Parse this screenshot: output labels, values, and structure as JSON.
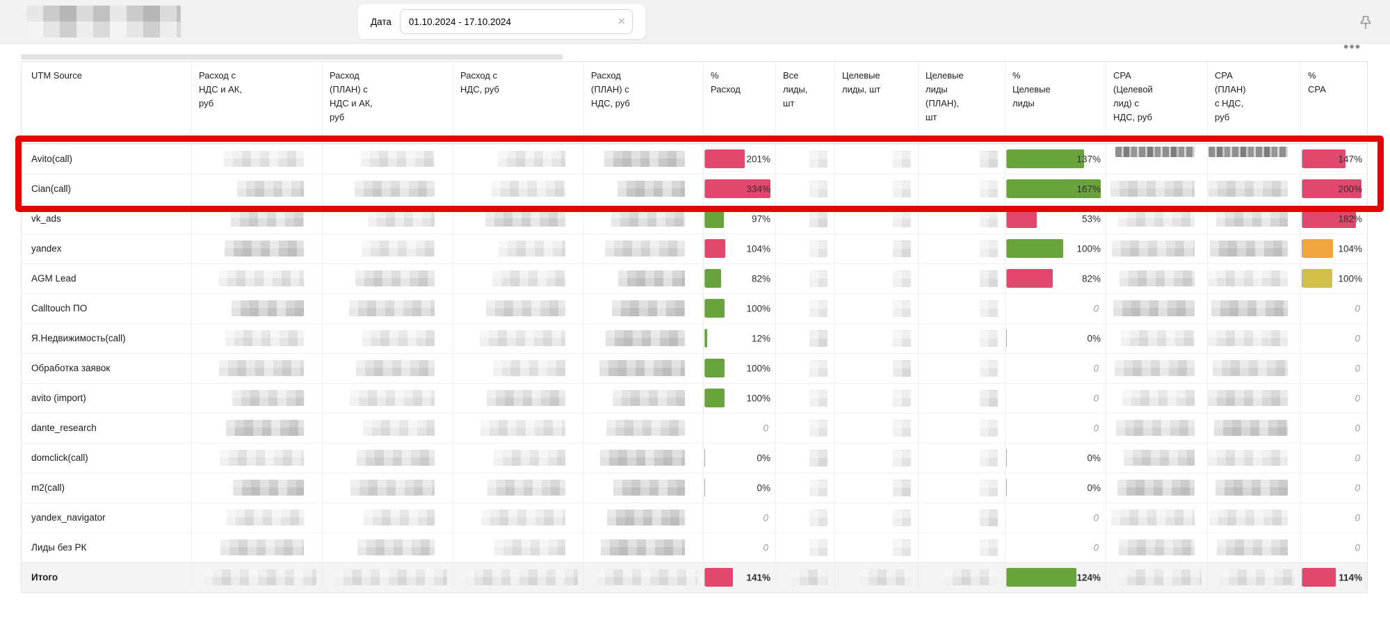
{
  "header_bar": {
    "date_label": "Дата",
    "date_value": "01.10.2024 - 17.10.2024"
  },
  "icons": {
    "clear_glyph": "✕",
    "more_glyph": "•••"
  },
  "palette": {
    "red": "#e2486d",
    "green": "#69a33c",
    "orange": "#f0a63f",
    "yellow": "#d3c04c",
    "annotation": "#e20600"
  },
  "table": {
    "bar_max": {
      "spend": 334,
      "leads": 167,
      "cpa": 200
    },
    "columns": [
      {
        "label": "UTM Source"
      },
      {
        "label": "Расход с\nНДС и АК,\nруб"
      },
      {
        "label": "Расход\n(ПЛАН) с\nНДС и АК,\nруб"
      },
      {
        "label": "Расход с\nНДС, руб"
      },
      {
        "label": "Расход\n(ПЛАН) с\nНДС, руб"
      },
      {
        "label": "%\nРасход"
      },
      {
        "label": "Все\nлиды,\nшт"
      },
      {
        "label": "Целевые\nлиды, шт"
      },
      {
        "label": "Целевые\nлиды\n(ПЛАН),\nшт"
      },
      {
        "label": "%\nЦелевые\nлиды"
      },
      {
        "label": "CPA\n(Целевой\nлид) с\nНДС, руб"
      },
      {
        "label": "CPA\n(ПЛАН)\nс НДС,\nруб"
      },
      {
        "label": "%\nCPA"
      }
    ],
    "rows": [
      {
        "name": "Avito(call)",
        "spend": {
          "t": "201%",
          "v": 201,
          "c": "red"
        },
        "leads": {
          "t": "137%",
          "v": 137,
          "c": "green"
        },
        "cpa_pct": {
          "t": "147%",
          "v": 147,
          "c": "red"
        },
        "total": false
      },
      {
        "name": "Cian(call)",
        "spend": {
          "t": "334%",
          "v": 334,
          "c": "red"
        },
        "leads": {
          "t": "167%",
          "v": 167,
          "c": "green"
        },
        "cpa_pct": {
          "t": "200%",
          "v": 200,
          "c": "red"
        },
        "total": false
      },
      {
        "name": "vk_ads",
        "spend": {
          "t": "97%",
          "v": 97,
          "c": "green"
        },
        "leads": {
          "t": "53%",
          "v": 53,
          "c": "red"
        },
        "cpa_pct": {
          "t": "182%",
          "v": 182,
          "c": "red"
        },
        "total": false
      },
      {
        "name": "yandex",
        "spend": {
          "t": "104%",
          "v": 104,
          "c": "red"
        },
        "leads": {
          "t": "100%",
          "v": 100,
          "c": "green"
        },
        "cpa_pct": {
          "t": "104%",
          "v": 104,
          "c": "orange"
        },
        "total": false
      },
      {
        "name": "AGM Lead",
        "spend": {
          "t": "82%",
          "v": 82,
          "c": "green"
        },
        "leads": {
          "t": "82%",
          "v": 82,
          "c": "red"
        },
        "cpa_pct": {
          "t": "100%",
          "v": 100,
          "c": "yellow"
        },
        "total": false
      },
      {
        "name": "Calltouch ПО",
        "spend": {
          "t": "100%",
          "v": 100,
          "c": "green"
        },
        "leads": {
          "t": "0",
          "v": 0,
          "c": "none",
          "i": true
        },
        "cpa_pct": {
          "t": "0",
          "v": 0,
          "c": "none",
          "i": true
        },
        "total": false
      },
      {
        "name": "Я.Недвижимость(call)",
        "spend": {
          "t": "12%",
          "v": 12,
          "c": "green"
        },
        "leads": {
          "t": "0%",
          "v": 0,
          "c": "none"
        },
        "cpa_pct": {
          "t": "0",
          "v": 0,
          "c": "none",
          "i": true
        },
        "total": false
      },
      {
        "name": "Обработка заявок",
        "spend": {
          "t": "100%",
          "v": 100,
          "c": "green"
        },
        "leads": {
          "t": "0",
          "v": 0,
          "c": "none",
          "i": true
        },
        "cpa_pct": {
          "t": "0",
          "v": 0,
          "c": "none",
          "i": true
        },
        "total": false
      },
      {
        "name": "avito (import)",
        "spend": {
          "t": "100%",
          "v": 100,
          "c": "green"
        },
        "leads": {
          "t": "0",
          "v": 0,
          "c": "none",
          "i": true
        },
        "cpa_pct": {
          "t": "0",
          "v": 0,
          "c": "none",
          "i": true
        },
        "total": false
      },
      {
        "name": "dante_research",
        "spend": {
          "t": "0",
          "v": 0,
          "c": "none",
          "i": true
        },
        "leads": {
          "t": "0",
          "v": 0,
          "c": "none",
          "i": true
        },
        "cpa_pct": {
          "t": "0",
          "v": 0,
          "c": "none",
          "i": true
        },
        "total": false
      },
      {
        "name": "domclick(call)",
        "spend": {
          "t": "0%",
          "v": 0,
          "c": "none"
        },
        "leads": {
          "t": "0%",
          "v": 0,
          "c": "none"
        },
        "cpa_pct": {
          "t": "0",
          "v": 0,
          "c": "none",
          "i": true
        },
        "total": false
      },
      {
        "name": "m2(call)",
        "spend": {
          "t": "0%",
          "v": 0,
          "c": "none"
        },
        "leads": {
          "t": "0%",
          "v": 0,
          "c": "none"
        },
        "cpa_pct": {
          "t": "0",
          "v": 0,
          "c": "none",
          "i": true
        },
        "total": false
      },
      {
        "name": "yandex_navigator",
        "spend": {
          "t": "0",
          "v": 0,
          "c": "none",
          "i": true
        },
        "leads": {
          "t": "0",
          "v": 0,
          "c": "none",
          "i": true
        },
        "cpa_pct": {
          "t": "0",
          "v": 0,
          "c": "none",
          "i": true
        },
        "total": false
      },
      {
        "name": "Лиды без РК",
        "spend": {
          "t": "0",
          "v": 0,
          "c": "none",
          "i": true
        },
        "leads": {
          "t": "0",
          "v": 0,
          "c": "none",
          "i": true
        },
        "cpa_pct": {
          "t": "0",
          "v": 0,
          "c": "none",
          "i": true
        },
        "total": false
      },
      {
        "name": "Итого",
        "spend": {
          "t": "141%",
          "v": 141,
          "c": "red"
        },
        "leads": {
          "t": "124%",
          "v": 124,
          "c": "green"
        },
        "cpa_pct": {
          "t": "114%",
          "v": 114,
          "c": "red"
        },
        "total": true
      }
    ]
  }
}
